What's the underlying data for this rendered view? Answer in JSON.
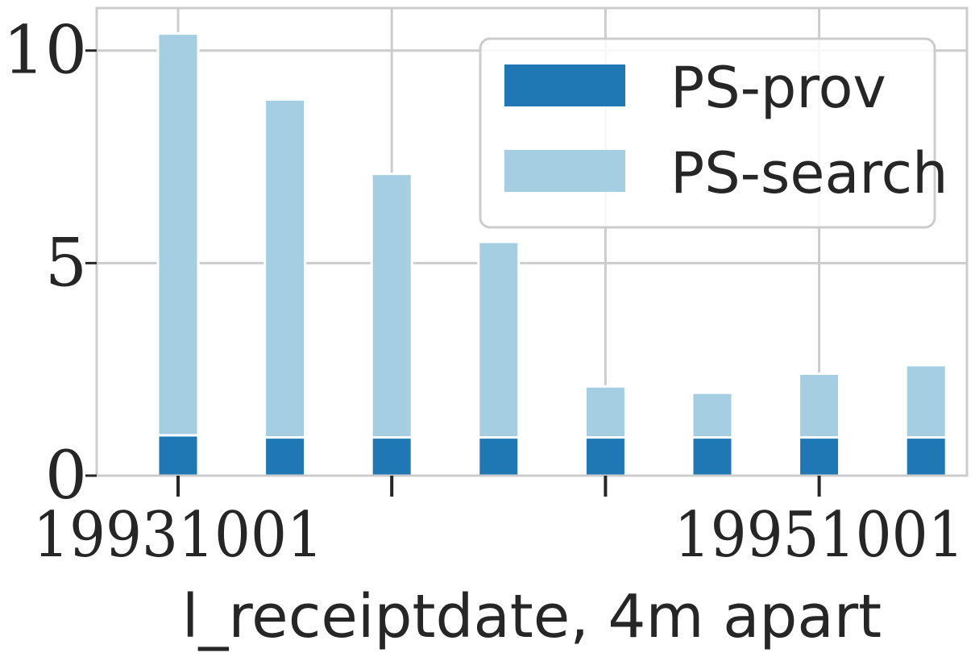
{
  "chart_data": {
    "type": "bar",
    "stacked": true,
    "xlabel": "l_receiptdate, 4m apart",
    "ylabel": "",
    "ylim": [
      0,
      11
    ],
    "yticks": [
      0,
      5,
      10
    ],
    "xticks": [
      {
        "index": 0,
        "label": "19931001"
      },
      {
        "index": 2,
        "label": ""
      },
      {
        "index": 4,
        "label": ""
      },
      {
        "index": 6,
        "label": "19951001"
      }
    ],
    "series": [
      {
        "name": "PS-prov",
        "color": "#1f78b4",
        "values": [
          0.95,
          0.9,
          0.9,
          0.9,
          0.9,
          0.9,
          0.9,
          0.9
        ]
      },
      {
        "name": "PS-search",
        "color": "#a6cee3",
        "values": [
          9.45,
          7.95,
          6.2,
          4.6,
          1.2,
          1.05,
          1.5,
          1.7
        ]
      }
    ],
    "grid": true,
    "legend": "top-right"
  }
}
